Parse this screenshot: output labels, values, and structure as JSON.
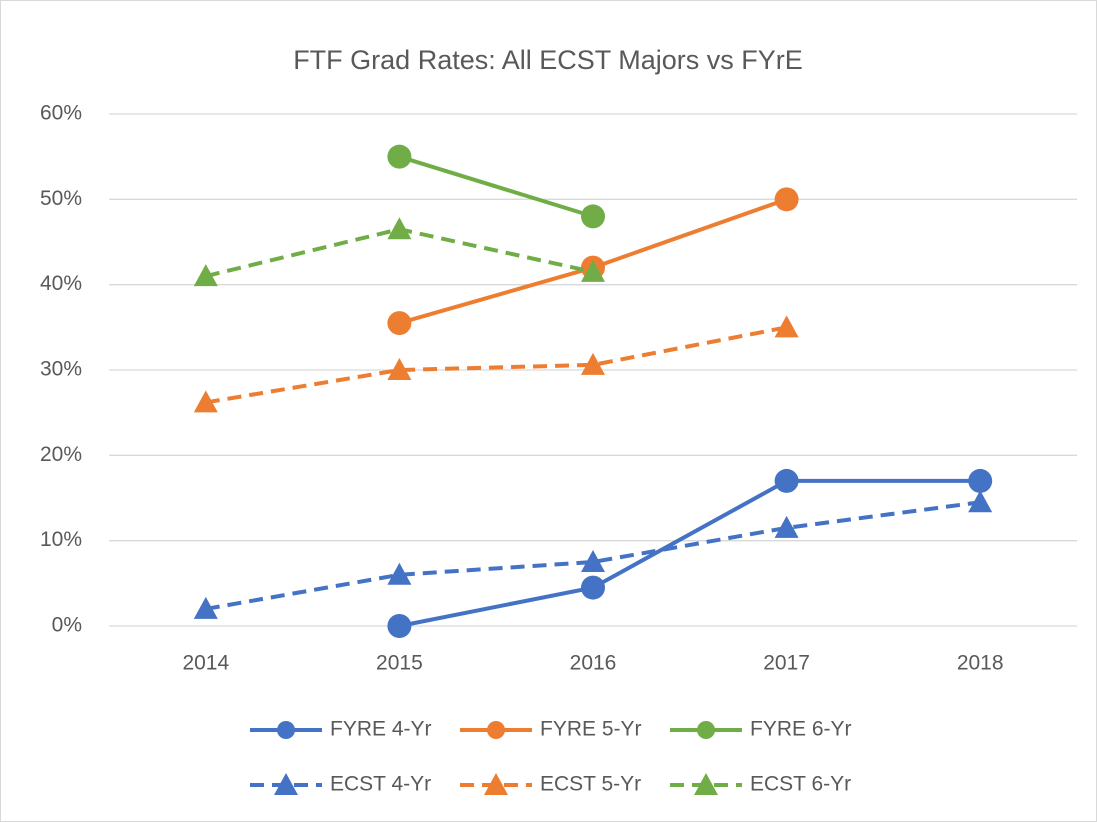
{
  "chart_data": {
    "type": "line",
    "title": "FTF Grad Rates: All ECST Majors vs FYrE",
    "categories": [
      "2014",
      "2015",
      "2016",
      "2017",
      "2018"
    ],
    "series": [
      {
        "name": "FYRE 4-Yr",
        "color": "#4472c4",
        "marker": "circle",
        "dashed": false,
        "values": [
          null,
          0,
          4.5,
          17,
          17
        ]
      },
      {
        "name": "FYRE 5-Yr",
        "color": "#ed7d31",
        "marker": "circle",
        "dashed": false,
        "values": [
          null,
          35.5,
          42,
          50,
          null
        ]
      },
      {
        "name": "FYRE 6-Yr",
        "color": "#70ad47",
        "marker": "circle",
        "dashed": false,
        "values": [
          null,
          55,
          48,
          null,
          null
        ]
      },
      {
        "name": "ECST 4-Yr",
        "color": "#4472c4",
        "marker": "triangle",
        "dashed": true,
        "values": [
          2,
          6,
          7.5,
          11.5,
          14.5
        ]
      },
      {
        "name": "ECST 5-Yr",
        "color": "#ed7d31",
        "marker": "triangle",
        "dashed": true,
        "values": [
          26.2,
          30,
          30.6,
          35,
          null
        ]
      },
      {
        "name": "ECST 6-Yr",
        "color": "#70ad47",
        "marker": "triangle",
        "dashed": true,
        "values": [
          41,
          46.5,
          41.5,
          null,
          null
        ]
      }
    ],
    "ylim": [
      0,
      60
    ],
    "yticks": [
      {
        "value": 0,
        "label": "0%"
      },
      {
        "value": 10,
        "label": "10%"
      },
      {
        "value": 20,
        "label": "20%"
      },
      {
        "value": 30,
        "label": "30%"
      },
      {
        "value": 40,
        "label": "40%"
      },
      {
        "value": 50,
        "label": "50%"
      },
      {
        "value": 60,
        "label": "60%"
      }
    ],
    "grid": true,
    "legend": "bottom"
  }
}
